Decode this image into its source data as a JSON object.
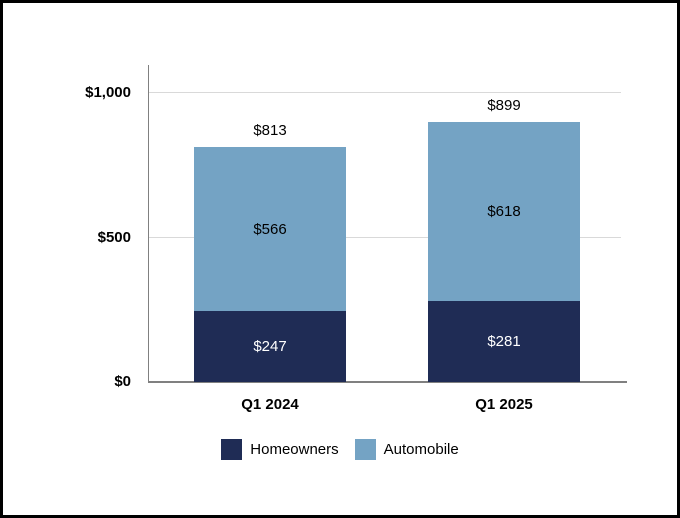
{
  "chart_data": {
    "type": "bar",
    "stacked": true,
    "title": "",
    "categories": [
      "Q1 2024",
      "Q1 2025"
    ],
    "series": [
      {
        "name": "Homeowners",
        "color": "#1f2c55",
        "values": [
          247,
          281
        ]
      },
      {
        "name": "Automobile",
        "color": "#74a3c4",
        "values": [
          566,
          618
        ]
      }
    ],
    "totals": [
      813,
      899
    ],
    "labels": {
      "homeowners": [
        "$247",
        "$281"
      ],
      "automobile": [
        "$566",
        "$618"
      ],
      "totals": [
        "$813",
        "$899"
      ]
    },
    "y_ticks": [
      {
        "label": "$0",
        "value": 0
      },
      {
        "label": "$500",
        "value": 500
      },
      {
        "label": "$1,000",
        "value": 1000
      }
    ],
    "gridlines": [
      500,
      1000
    ],
    "ylim": [
      0,
      1100
    ],
    "legend": [
      "Homeowners",
      "Automobile"
    ],
    "legend_position": "bottom",
    "grid": true
  },
  "colors": {
    "homeowners": "#1f2c55",
    "automobile": "#74a3c4",
    "gridline": "#d9d9d9",
    "axis": "#808080",
    "frame_border": "#000000",
    "background": "#ffffff",
    "label_on_dark": "#ffffff",
    "label_on_light": "#000000"
  }
}
